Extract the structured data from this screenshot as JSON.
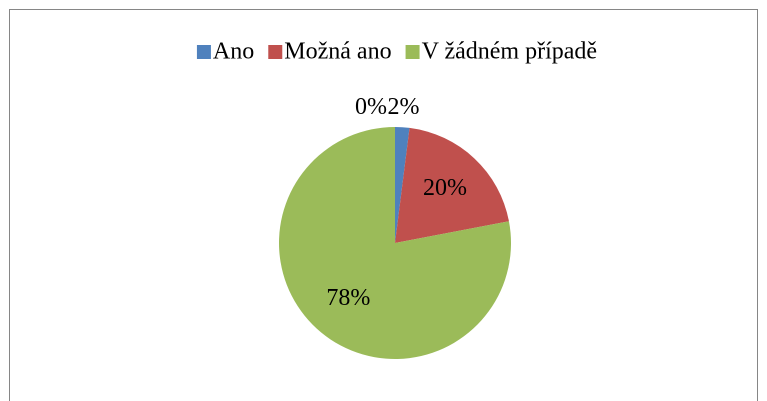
{
  "chart_data": {
    "type": "pie",
    "categories": [
      "Ano",
      "Možná ano",
      "V žádném případě",
      null
    ],
    "values": [
      2,
      20,
      78,
      0
    ],
    "value_labels": [
      "2%",
      "20%",
      "78%",
      "0%"
    ],
    "colors": [
      "#4f81bd",
      "#c0504d",
      "#9bbb59",
      "#8064a2"
    ],
    "legend": "top"
  }
}
